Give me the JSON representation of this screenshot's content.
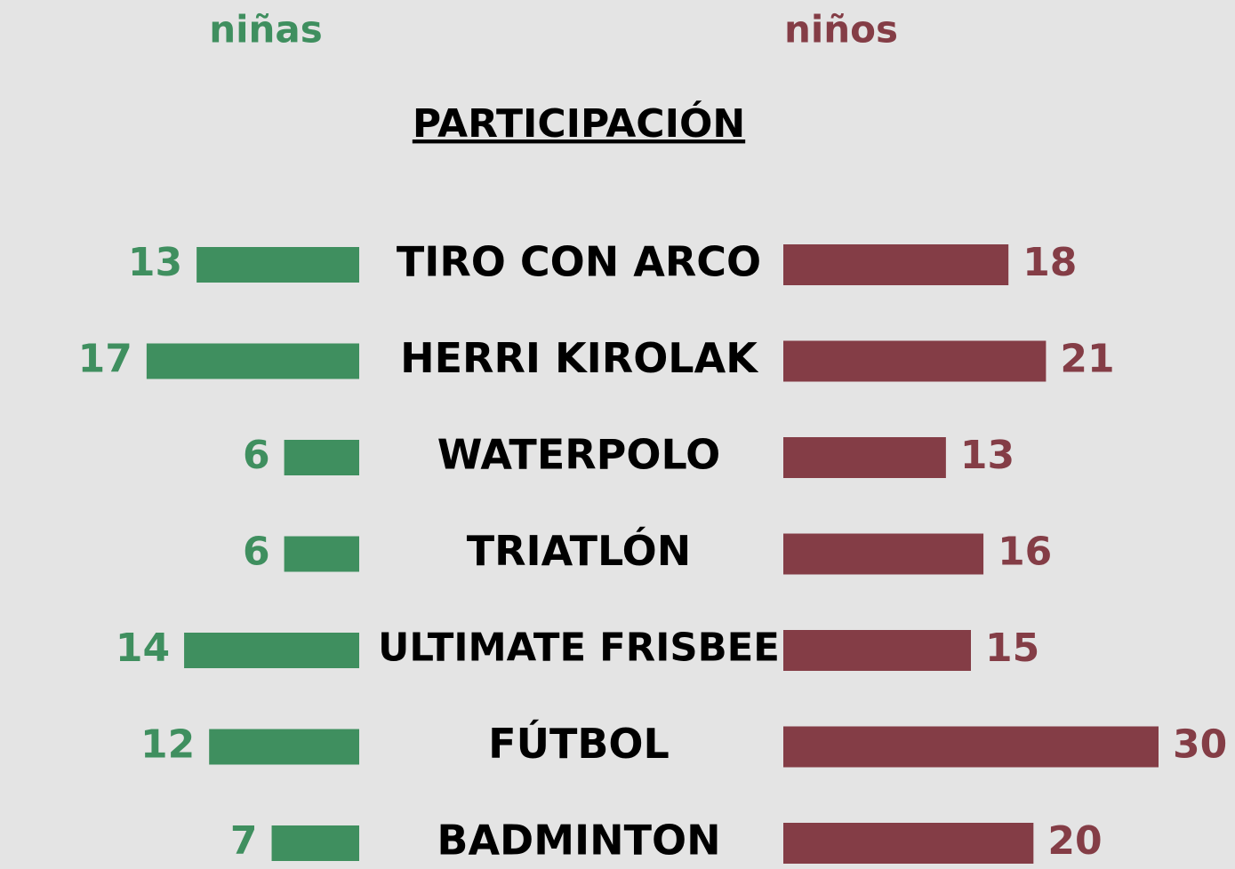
{
  "chart_data": {
    "type": "butterfly-bar",
    "title": "PARTICIPACIÓN",
    "categories": [
      "TIRO CON ARCO",
      "HERRI KIROLAK",
      "WATERPOLO",
      "TRIATLÓN",
      "ULTIMATE FRISBEE",
      "FÚTBOL",
      "BADMINTON"
    ],
    "series": [
      {
        "name": "niñas",
        "color": "#3f8f5f",
        "values": [
          13,
          17,
          6,
          6,
          14,
          12,
          7
        ]
      },
      {
        "name": "niños",
        "color": "#843d46",
        "values": [
          18,
          21,
          13,
          16,
          15,
          30,
          20
        ]
      }
    ]
  }
}
